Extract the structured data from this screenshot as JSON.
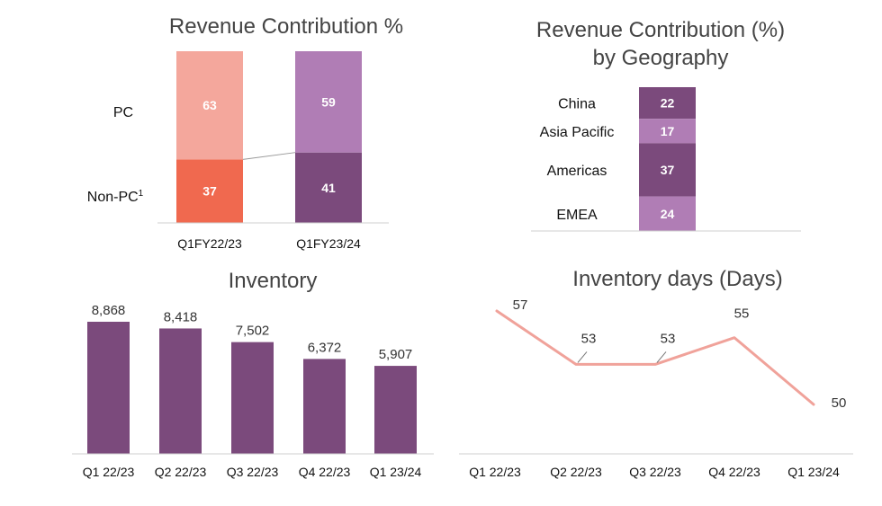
{
  "chart_data": [
    {
      "type": "bar",
      "stacked": true,
      "title": "Revenue Contribution %",
      "categories": [
        "Q1FY22/23",
        "Q1FY23/24"
      ],
      "row_labels": {
        "pc": "PC",
        "non_pc": "Non-PC",
        "non_pc_sup": "1"
      },
      "series": [
        {
          "name": "Non-PC",
          "values": [
            37,
            41
          ],
          "colors": [
            "#f0694f",
            "#7b4a7c"
          ]
        },
        {
          "name": "PC",
          "values": [
            63,
            59
          ],
          "colors": [
            "#f4a79c",
            "#b07db5"
          ]
        }
      ],
      "ylim": [
        0,
        100
      ]
    },
    {
      "type": "bar",
      "stacked": true,
      "title_line1": "Revenue Contribution (%)",
      "title_line2": "by Geography",
      "segments": [
        {
          "name": "China",
          "value": 22,
          "color": "#7b4a7c"
        },
        {
          "name": "Asia Pacific",
          "value": 17,
          "color": "#b07db5"
        },
        {
          "name": "Americas",
          "value": 37,
          "color": "#7b4a7c"
        },
        {
          "name": "EMEA",
          "value": 24,
          "color": "#b07db5"
        }
      ]
    },
    {
      "type": "bar",
      "title": "Inventory",
      "categories": [
        "Q1 22/23",
        "Q2 22/23",
        "Q3 22/23",
        "Q4 22/23",
        "Q1 23/24"
      ],
      "values": [
        8868,
        8418,
        7502,
        6372,
        5907
      ],
      "value_labels": [
        "8,868",
        "8,418",
        "7,502",
        "6,372",
        "5,907"
      ],
      "color": "#7b4a7c",
      "ylim": [
        0,
        10000
      ]
    },
    {
      "type": "line",
      "title": "Inventory days (Days)",
      "categories": [
        "Q1 22/23",
        "Q2 22/23",
        "Q3 22/23",
        "Q4 22/23",
        "Q1 23/24"
      ],
      "values": [
        57,
        53,
        53,
        55,
        50
      ],
      "color": "#f0a29a",
      "ylim": [
        50,
        57
      ]
    }
  ]
}
